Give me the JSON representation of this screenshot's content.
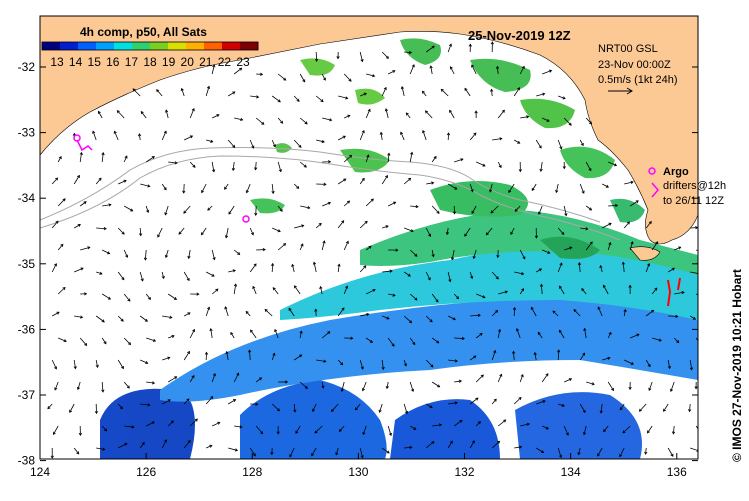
{
  "title": "25-Nov-2019 12Z",
  "colorbar": {
    "label": "4h comp, p50, All Sats",
    "ticks": [
      "13",
      "14",
      "15",
      "16",
      "17",
      "18",
      "19",
      "20",
      "21",
      "22",
      "23"
    ],
    "colors": [
      "#00007f",
      "#0020d0",
      "#0060ff",
      "#00a0ff",
      "#00e0e0",
      "#30d070",
      "#7ad020",
      "#d8e000",
      "#ffb000",
      "#ff6000",
      "#d00000",
      "#7f0000"
    ]
  },
  "info": {
    "line1": "NRT00 GSL",
    "line2": "23-Nov 00:00Z",
    "line3": "0.5m/s (1kt 24h)"
  },
  "legend": {
    "argo": "Argo",
    "drifters": "drifters@12h",
    "drifters_to": "to 26/11 12Z"
  },
  "credit": "© IMOS 27-Nov-2019 10:21 Hobart",
  "x_ticks": [
    "124",
    "126",
    "128",
    "130",
    "132",
    "134",
    "136"
  ],
  "y_ticks": [
    "-32",
    "-33",
    "-34",
    "-35",
    "-36",
    "-37",
    "-38"
  ],
  "colors": {
    "land": "#fcc995",
    "argo": "#ff00ff",
    "drifter": "#ff0000",
    "bathymetry": "#a8a8a8"
  }
}
